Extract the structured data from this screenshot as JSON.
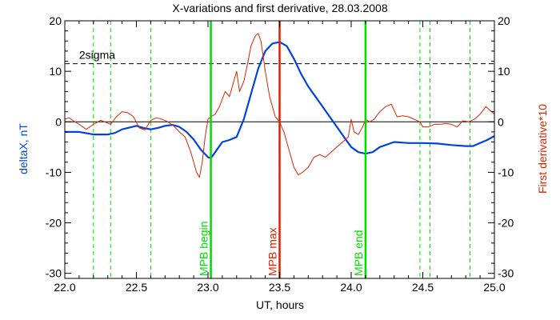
{
  "chart_data": {
    "type": "line",
    "title": "X-variations and first derivative, 28.03.2008",
    "xlabel": "UT, hours",
    "ylabel_left": "deltaX, nT",
    "ylabel_right": "First derivative*10",
    "xlim": [
      22.0,
      25.0
    ],
    "ylim": [
      -31,
      20
    ],
    "xticks": [
      "22.0",
      "22.5",
      "23.0",
      "23.5",
      "24.0",
      "24.5",
      "25.0"
    ],
    "yticks": [
      "20",
      "10",
      "0",
      "-10",
      "-20",
      "-30"
    ],
    "colors": {
      "deltaX": "#0044dd",
      "derivative": "#dd2200",
      "markers": "#00dd00",
      "max_marker": "#dd2200"
    },
    "series": [
      {
        "name": "deltaX, nT",
        "axis": "left",
        "x": [
          22.0,
          22.05,
          22.1,
          22.2,
          22.3,
          22.35,
          22.4,
          22.5,
          22.55,
          22.6,
          22.65,
          22.7,
          22.75,
          22.8,
          22.85,
          22.9,
          22.95,
          23.0,
          23.02,
          23.05,
          23.1,
          23.15,
          23.2,
          23.25,
          23.3,
          23.35,
          23.4,
          23.45,
          23.5,
          23.55,
          23.6,
          23.65,
          23.7,
          23.75,
          23.8,
          23.85,
          23.9,
          23.95,
          24.0,
          24.05,
          24.1,
          24.15,
          24.2,
          24.3,
          24.4,
          24.5,
          24.6,
          24.7,
          24.8,
          24.85,
          24.9,
          24.95,
          25.0
        ],
        "y": [
          -2.0,
          -2.0,
          -2.0,
          -2.5,
          -2.5,
          -2.2,
          -1.5,
          -0.8,
          -1.2,
          -1.5,
          -1.2,
          -0.8,
          -0.6,
          -1.0,
          -2.0,
          -3.5,
          -5.5,
          -7.0,
          -7.2,
          -6.0,
          -4.0,
          -3.6,
          -3.0,
          0.5,
          5.5,
          10.5,
          14.0,
          15.5,
          15.8,
          15.0,
          12.5,
          9.5,
          7.0,
          5.0,
          3.0,
          1.0,
          -1.0,
          -3.0,
          -5.0,
          -6.0,
          -6.3,
          -6.0,
          -5.0,
          -4.0,
          -4.2,
          -4.2,
          -4.3,
          -4.6,
          -4.8,
          -4.8,
          -4.2,
          -3.6,
          -2.8
        ]
      },
      {
        "name": "First derivative*10",
        "axis": "right",
        "x": [
          22.0,
          22.03,
          22.06,
          22.1,
          22.15,
          22.2,
          22.25,
          22.28,
          22.32,
          22.36,
          22.4,
          22.44,
          22.48,
          22.52,
          22.56,
          22.6,
          22.64,
          22.68,
          22.72,
          22.76,
          22.8,
          22.84,
          22.88,
          22.92,
          22.94,
          22.96,
          22.98,
          23.0,
          23.02,
          23.05,
          23.08,
          23.12,
          23.15,
          23.18,
          23.2,
          23.22,
          23.25,
          23.28,
          23.3,
          23.33,
          23.35,
          23.37,
          23.4,
          23.43,
          23.47,
          23.5,
          23.53,
          23.56,
          23.6,
          23.63,
          23.66,
          23.7,
          23.74,
          23.78,
          23.82,
          23.86,
          23.9,
          23.94,
          23.98,
          24.0,
          24.02,
          24.05,
          24.08,
          24.1,
          24.13,
          24.16,
          24.2,
          24.24,
          24.28,
          24.32,
          24.36,
          24.4,
          24.44,
          24.48,
          24.5,
          24.54,
          24.58,
          24.62,
          24.66,
          24.7,
          24.74,
          24.78,
          24.82,
          24.86,
          24.9,
          24.94,
          24.98,
          25.0
        ],
        "y": [
          0.5,
          0.8,
          0.2,
          -0.5,
          -1.5,
          -0.5,
          0.3,
          0.0,
          -0.5,
          1.0,
          2.0,
          1.8,
          1.0,
          -1.2,
          -1.6,
          0.3,
          0.8,
          0.5,
          0.0,
          -0.8,
          -2.0,
          -3.0,
          -6.0,
          -10.0,
          -11.0,
          -8.0,
          -3.0,
          0.5,
          1.0,
          1.5,
          3.0,
          6.0,
          5.0,
          8.0,
          10.0,
          6.0,
          8.0,
          12.0,
          15.0,
          17.0,
          17.5,
          16.0,
          10.0,
          5.0,
          1.0,
          0.0,
          -2.0,
          -5.0,
          -9.0,
          -10.5,
          -10.0,
          -9.0,
          -7.0,
          -6.5,
          -7.0,
          -6.0,
          -5.0,
          -4.0,
          -3.0,
          0.5,
          -2.0,
          -2.5,
          -1.0,
          0.5,
          0.0,
          0.5,
          2.0,
          3.0,
          3.5,
          1.0,
          1.2,
          1.0,
          0.5,
          0.0,
          -1.0,
          -1.0,
          -0.5,
          -0.5,
          -0.3,
          -0.5,
          -1.0,
          0.2,
          0.0,
          0.5,
          1.5,
          3.0,
          2.0,
          1.5
        ]
      }
    ],
    "reference_lines": [
      {
        "label": "2sigma",
        "y": 11.5,
        "style": "dashed"
      },
      {
        "label": "",
        "y": 0,
        "style": "solid"
      }
    ],
    "dashed_vertical_x": [
      22.2,
      22.32,
      22.6,
      24.48,
      24.55,
      24.83
    ],
    "markers": [
      {
        "label": "MPB begin",
        "x": 23.02,
        "kind": "begin"
      },
      {
        "label": "MPB max",
        "x": 23.5,
        "kind": "max"
      },
      {
        "label": "MPB end",
        "x": 24.1,
        "kind": "end"
      }
    ]
  }
}
